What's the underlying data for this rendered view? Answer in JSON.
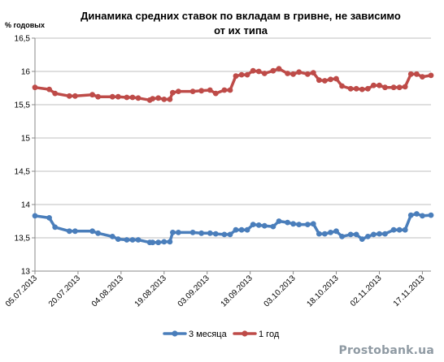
{
  "watermark": "Prostobank.ua",
  "chart_data": {
    "type": "line",
    "title_line1": "Динамика средних ставок по вкладам в гривне, не зависимо",
    "title_line2": "от их типа",
    "ylabel": "% годовых",
    "ylim": [
      13,
      16.5
    ],
    "yticks": [
      "13",
      "13,5",
      "14",
      "14,5",
      "15",
      "15,5",
      "16",
      "16,5"
    ],
    "ytick_values": [
      13,
      13.5,
      14,
      14.5,
      15,
      15.5,
      16,
      16.5
    ],
    "x_range": [
      "2013-07-05",
      "2013-11-20"
    ],
    "xticks": [
      "05.07.2013",
      "20.07.2013",
      "04.08.2013",
      "19.08.2013",
      "03.09.2013",
      "18.09.2013",
      "03.10.2013",
      "18.10.2013",
      "02.11.2013",
      "17.11.2013"
    ],
    "xtick_dates": [
      "2013-07-05",
      "2013-07-20",
      "2013-08-04",
      "2013-08-19",
      "2013-09-03",
      "2013-09-18",
      "2013-10-03",
      "2013-10-18",
      "2013-11-02",
      "2013-11-17"
    ],
    "grid": true,
    "legend_position": "bottom",
    "series": [
      {
        "name": "3 месяца",
        "color": "#4a7ebb",
        "points": [
          [
            "2013-07-05",
            13.83
          ],
          [
            "2013-07-10",
            13.8
          ],
          [
            "2013-07-12",
            13.66
          ],
          [
            "2013-07-17",
            13.6
          ],
          [
            "2013-07-19",
            13.6
          ],
          [
            "2013-07-25",
            13.6
          ],
          [
            "2013-07-27",
            13.57
          ],
          [
            "2013-08-01",
            13.52
          ],
          [
            "2013-08-03",
            13.48
          ],
          [
            "2013-08-06",
            13.47
          ],
          [
            "2013-08-08",
            13.47
          ],
          [
            "2013-08-10",
            13.47
          ],
          [
            "2013-08-14",
            13.43
          ],
          [
            "2013-08-15",
            13.43
          ],
          [
            "2013-08-17",
            13.43
          ],
          [
            "2013-08-19",
            13.44
          ],
          [
            "2013-08-21",
            13.44
          ],
          [
            "2013-08-22",
            13.58
          ],
          [
            "2013-08-24",
            13.58
          ],
          [
            "2013-08-29",
            13.58
          ],
          [
            "2013-09-01",
            13.57
          ],
          [
            "2013-09-04",
            13.57
          ],
          [
            "2013-09-06",
            13.56
          ],
          [
            "2013-09-09",
            13.55
          ],
          [
            "2013-09-11",
            13.55
          ],
          [
            "2013-09-13",
            13.62
          ],
          [
            "2013-09-15",
            13.62
          ],
          [
            "2013-09-17",
            13.62
          ],
          [
            "2013-09-19",
            13.7
          ],
          [
            "2013-09-21",
            13.69
          ],
          [
            "2013-09-23",
            13.68
          ],
          [
            "2013-09-26",
            13.67
          ],
          [
            "2013-09-28",
            13.75
          ],
          [
            "2013-10-01",
            13.73
          ],
          [
            "2013-10-03",
            13.71
          ],
          [
            "2013-10-05",
            13.7
          ],
          [
            "2013-10-08",
            13.7
          ],
          [
            "2013-10-10",
            13.71
          ],
          [
            "2013-10-12",
            13.56
          ],
          [
            "2013-10-14",
            13.56
          ],
          [
            "2013-10-16",
            13.58
          ],
          [
            "2013-10-18",
            13.6
          ],
          [
            "2013-10-20",
            13.52
          ],
          [
            "2013-10-23",
            13.55
          ],
          [
            "2013-10-25",
            13.55
          ],
          [
            "2013-10-27",
            13.48
          ],
          [
            "2013-10-29",
            13.52
          ],
          [
            "2013-10-31",
            13.55
          ],
          [
            "2013-11-02",
            13.56
          ],
          [
            "2013-11-04",
            13.56
          ],
          [
            "2013-11-07",
            13.62
          ],
          [
            "2013-11-09",
            13.62
          ],
          [
            "2013-11-11",
            13.62
          ],
          [
            "2013-11-13",
            13.84
          ],
          [
            "2013-11-15",
            13.86
          ],
          [
            "2013-11-17",
            13.83
          ],
          [
            "2013-11-20",
            13.84
          ]
        ]
      },
      {
        "name": "1 год",
        "color": "#be4b48",
        "points": [
          [
            "2013-07-05",
            15.76
          ],
          [
            "2013-07-10",
            15.73
          ],
          [
            "2013-07-12",
            15.67
          ],
          [
            "2013-07-17",
            15.63
          ],
          [
            "2013-07-19",
            15.63
          ],
          [
            "2013-07-25",
            15.65
          ],
          [
            "2013-07-27",
            15.62
          ],
          [
            "2013-08-01",
            15.62
          ],
          [
            "2013-08-03",
            15.62
          ],
          [
            "2013-08-06",
            15.61
          ],
          [
            "2013-08-08",
            15.61
          ],
          [
            "2013-08-10",
            15.6
          ],
          [
            "2013-08-14",
            15.57
          ],
          [
            "2013-08-15",
            15.59
          ],
          [
            "2013-08-17",
            15.6
          ],
          [
            "2013-08-19",
            15.58
          ],
          [
            "2013-08-21",
            15.58
          ],
          [
            "2013-08-22",
            15.68
          ],
          [
            "2013-08-24",
            15.7
          ],
          [
            "2013-08-29",
            15.7
          ],
          [
            "2013-09-01",
            15.71
          ],
          [
            "2013-09-04",
            15.72
          ],
          [
            "2013-09-06",
            15.67
          ],
          [
            "2013-09-09",
            15.72
          ],
          [
            "2013-09-11",
            15.72
          ],
          [
            "2013-09-13",
            15.93
          ],
          [
            "2013-09-15",
            15.95
          ],
          [
            "2013-09-17",
            15.95
          ],
          [
            "2013-09-19",
            16.01
          ],
          [
            "2013-09-21",
            16.0
          ],
          [
            "2013-09-23",
            15.97
          ],
          [
            "2013-09-26",
            16.01
          ],
          [
            "2013-09-28",
            16.04
          ],
          [
            "2013-10-01",
            15.97
          ],
          [
            "2013-10-03",
            15.96
          ],
          [
            "2013-10-05",
            15.99
          ],
          [
            "2013-10-08",
            15.96
          ],
          [
            "2013-10-10",
            15.98
          ],
          [
            "2013-10-12",
            15.87
          ],
          [
            "2013-10-14",
            15.86
          ],
          [
            "2013-10-16",
            15.88
          ],
          [
            "2013-10-18",
            15.89
          ],
          [
            "2013-10-20",
            15.78
          ],
          [
            "2013-10-23",
            15.74
          ],
          [
            "2013-10-25",
            15.74
          ],
          [
            "2013-10-27",
            15.73
          ],
          [
            "2013-10-29",
            15.74
          ],
          [
            "2013-10-31",
            15.79
          ],
          [
            "2013-11-02",
            15.79
          ],
          [
            "2013-11-04",
            15.76
          ],
          [
            "2013-11-07",
            15.76
          ],
          [
            "2013-11-09",
            15.76
          ],
          [
            "2013-11-11",
            15.77
          ],
          [
            "2013-11-13",
            15.96
          ],
          [
            "2013-11-15",
            15.96
          ],
          [
            "2013-11-17",
            15.92
          ],
          [
            "2013-11-20",
            15.94
          ]
        ]
      }
    ]
  }
}
